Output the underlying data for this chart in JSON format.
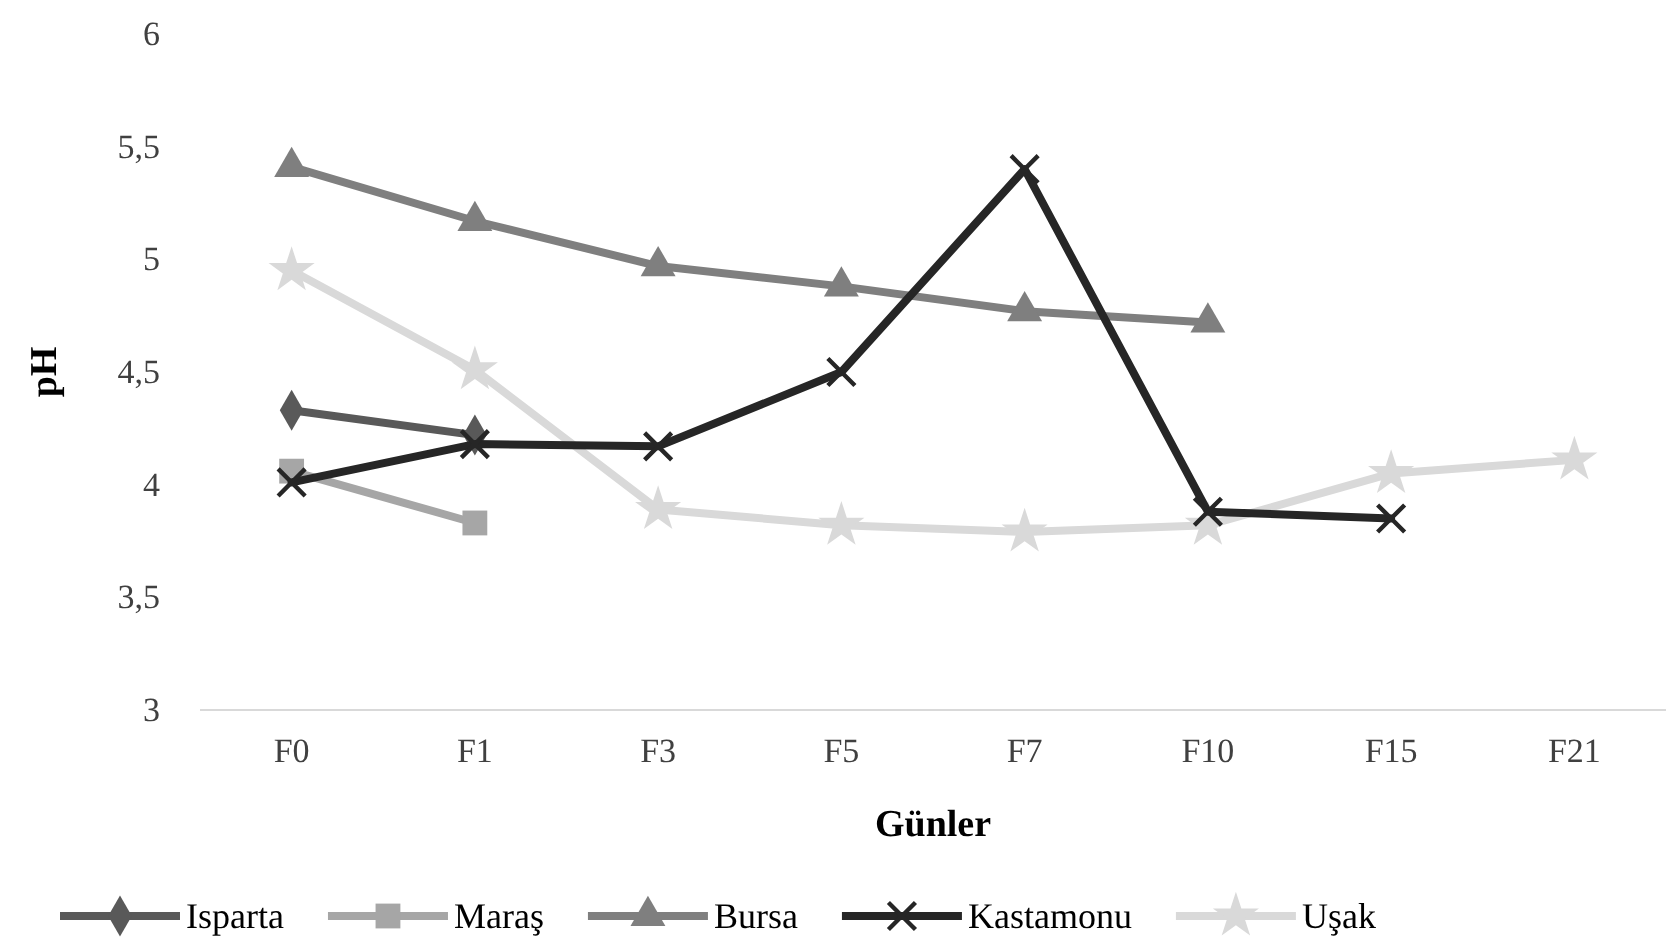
{
  "chart_data": {
    "type": "line",
    "xlabel": "Günler",
    "ylabel": "pH",
    "categories": [
      "F0",
      "F1",
      "F3",
      "F5",
      "F7",
      "F10",
      "F15",
      "F21"
    ],
    "ylim": [
      3,
      6
    ],
    "yticks": [
      3,
      {
        "value": 3.5,
        "label": "3,5"
      },
      4,
      {
        "value": 4.5,
        "label": "4,5"
      },
      5,
      {
        "value": 5.5,
        "label": "5,5"
      },
      6
    ],
    "grid": false,
    "legend": "bottom",
    "line_style": "solid",
    "series": [
      {
        "name": "Isparta",
        "color": "#595959",
        "marker": "diamond",
        "values": [
          4.33,
          4.22,
          null,
          null,
          null,
          null,
          null,
          null
        ]
      },
      {
        "name": "Maraş",
        "color": "#a6a6a6",
        "marker": "square",
        "values": [
          4.06,
          3.83,
          null,
          null,
          null,
          null,
          null,
          null
        ]
      },
      {
        "name": "Bursa",
        "color": "#7f7f7f",
        "marker": "triangle",
        "values": [
          5.41,
          5.17,
          4.97,
          4.88,
          4.77,
          4.72,
          null,
          null
        ]
      },
      {
        "name": "Kastamonu",
        "color": "#262626",
        "marker": "cross",
        "values": [
          4.01,
          4.18,
          4.17,
          4.5,
          5.4,
          3.88,
          3.85,
          null
        ]
      },
      {
        "name": "Uşak",
        "color": "#d9d9d9",
        "marker": "star",
        "values": [
          4.95,
          4.51,
          3.89,
          3.82,
          3.79,
          3.82,
          4.05,
          4.11
        ]
      }
    ]
  }
}
